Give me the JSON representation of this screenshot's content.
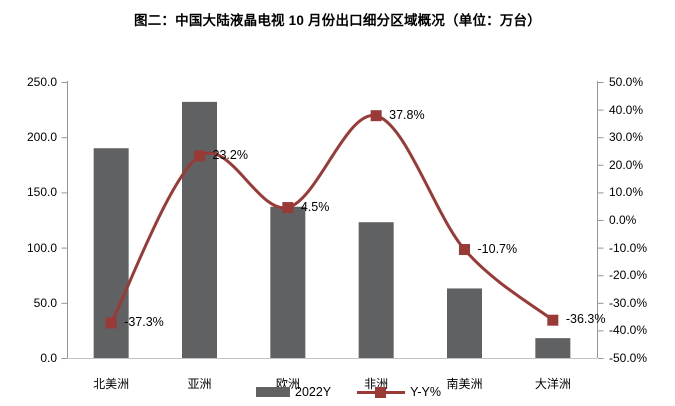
{
  "title": "图二：中国大陆液晶电视 10 月份出口细分区域概况（单位：万台）",
  "legend": {
    "bar_label": "2022Y",
    "line_label": "Y-Y%"
  },
  "colors": {
    "bar": "#5F6163",
    "line": "#9A3A37",
    "axis_line": "#969696",
    "baseline": "#C3C3C3",
    "text": "#000000"
  },
  "chart_data": {
    "type": "bar",
    "subtype": "combo-bar-line",
    "title": "图二：中国大陆液晶电视 10 月份出口细分区域概况（单位：万台）",
    "categories": [
      "北美洲",
      "亚洲",
      "欧洲",
      "非洲",
      "南美洲",
      "大洋洲"
    ],
    "series": [
      {
        "name": "2022Y",
        "type": "bar",
        "axis": "left",
        "values": [
          190,
          232,
          137,
          123,
          63,
          18
        ]
      },
      {
        "name": "Y-Y%",
        "type": "line",
        "axis": "right",
        "values": [
          -37.3,
          23.2,
          4.5,
          37.8,
          -10.7,
          -36.3
        ],
        "labels": [
          "-37.3%",
          "23.2%",
          "4.5%",
          "37.8%",
          "-10.7%",
          "-36.3%"
        ]
      }
    ],
    "left_axis": {
      "min": 0,
      "max": 250,
      "step": 50,
      "tick_labels": [
        "250.0",
        "200.0",
        "150.0",
        "100.0",
        "50.0",
        "0.0"
      ]
    },
    "right_axis": {
      "min": -50,
      "max": 50,
      "step": 10,
      "tick_labels": [
        "50.0%",
        "40.0%",
        "30.0%",
        "20.0%",
        "10.0%",
        "0.0%",
        "-10.0%",
        "-20.0%",
        "-30.0%",
        "-40.0%",
        "-50.0%"
      ]
    },
    "grid": false,
    "legend_position": "bottom-center",
    "xlabel": "",
    "ylabel_left": "万台",
    "ylabel_right": "%"
  }
}
